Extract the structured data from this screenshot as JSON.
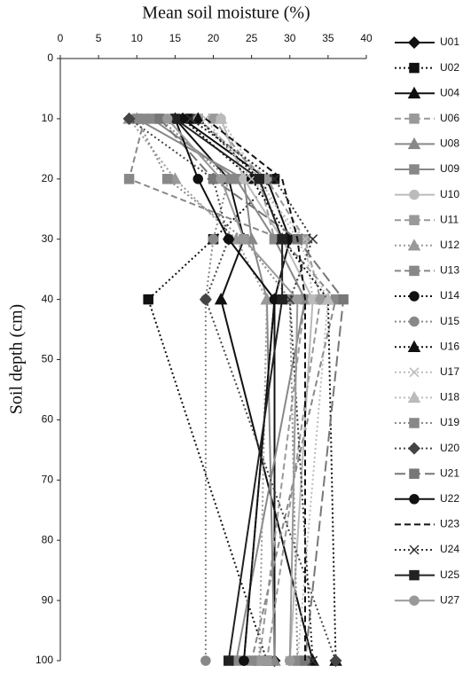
{
  "chart_data": {
    "type": "line",
    "xlabel": "Mean soil moisture (%)",
    "ylabel": "Soil depth (cm)",
    "xlim": [
      0,
      40
    ],
    "xticks": [
      0,
      5,
      10,
      15,
      20,
      25,
      30,
      35,
      40
    ],
    "ylim": [
      0,
      100
    ],
    "yticks": [
      0,
      10,
      20,
      30,
      40,
      50,
      60,
      70,
      80,
      90,
      100
    ],
    "y": [
      10,
      20,
      30,
      40,
      100
    ],
    "series": [
      {
        "name": "U01",
        "color": "#111111",
        "dash": "solid",
        "marker": "diamond",
        "values": [
          16,
          27,
          30,
          28,
          28
        ]
      },
      {
        "name": "U02",
        "color": "#111111",
        "dash": "dotted",
        "marker": "square",
        "values": [
          17,
          28,
          20,
          11.5,
          27
        ]
      },
      {
        "name": "U04",
        "color": "#111111",
        "dash": "solid",
        "marker": "triangle",
        "values": [
          15,
          22,
          24,
          21,
          33
        ]
      },
      {
        "name": "U06",
        "color": "#999999",
        "dash": "dashed",
        "marker": "plus-square",
        "values": [
          20,
          26,
          28,
          32,
          26
        ]
      },
      {
        "name": "U08",
        "color": "#888888",
        "dash": "solid",
        "marker": "triangle",
        "values": [
          10,
          24,
          25,
          27,
          28
        ]
      },
      {
        "name": "U09",
        "color": "#888888",
        "dash": "solid",
        "marker": "square",
        "values": [
          12,
          23,
          28,
          32,
          23
        ]
      },
      {
        "name": "U10",
        "color": "#bbbbbb",
        "dash": "solid",
        "marker": "circle",
        "values": [
          21,
          24,
          29,
          33,
          30
        ]
      },
      {
        "name": "U11",
        "color": "#999999",
        "dash": "dashed",
        "marker": "x-square",
        "values": [
          18,
          27,
          32,
          34,
          27
        ]
      },
      {
        "name": "U12",
        "color": "#999999",
        "dash": "dotted",
        "marker": "triangle",
        "values": [
          9,
          15,
          23,
          27,
          26
        ]
      },
      {
        "name": "U13",
        "color": "#888888",
        "dash": "dashed",
        "marker": "square",
        "values": [
          11,
          9,
          29,
          36,
          25
        ]
      },
      {
        "name": "U14",
        "color": "#111111",
        "dash": "dotted",
        "marker": "circle",
        "values": [
          16,
          25,
          30,
          28,
          24
        ]
      },
      {
        "name": "U15",
        "color": "#888888",
        "dash": "dotted",
        "marker": "circle",
        "values": [
          13,
          22,
          20,
          19,
          19
        ]
      },
      {
        "name": "U16",
        "color": "#111111",
        "dash": "dotted",
        "marker": "triangle",
        "values": [
          18,
          26,
          29,
          35,
          36
        ]
      },
      {
        "name": "U17",
        "color": "#bbbbbb",
        "dash": "dotted",
        "marker": "x",
        "values": [
          19,
          25,
          32,
          33,
          30
        ]
      },
      {
        "name": "U18",
        "color": "#bbbbbb",
        "dash": "dotted",
        "marker": "triangle",
        "values": [
          21,
          26,
          31,
          35,
          31
        ]
      },
      {
        "name": "U19",
        "color": "#888888",
        "dash": "dotted",
        "marker": "square",
        "values": [
          10,
          14,
          24,
          30,
          31
        ]
      },
      {
        "name": "U20",
        "color": "#444444",
        "dash": "dotted",
        "marker": "diamond",
        "values": [
          9,
          20,
          22,
          19,
          36
        ]
      },
      {
        "name": "U21",
        "color": "#777777",
        "dash": "longdash",
        "marker": "square",
        "values": [
          13,
          20,
          31,
          37,
          32
        ]
      },
      {
        "name": "U22",
        "color": "#111111",
        "dash": "solid",
        "marker": "circle",
        "values": [
          15,
          18,
          22,
          28,
          24
        ]
      },
      {
        "name": "U23",
        "color": "#111111",
        "dash": "dashed",
        "marker": "none",
        "values": [
          19,
          29,
          31,
          32,
          32
        ]
      },
      {
        "name": "U24",
        "color": "#333333",
        "dash": "dotted",
        "marker": "x",
        "values": [
          17,
          28,
          33,
          30,
          33
        ]
      },
      {
        "name": "U25",
        "color": "#222222",
        "dash": "solid",
        "marker": "square",
        "values": [
          15,
          26,
          29,
          29,
          22
        ]
      },
      {
        "name": "U27",
        "color": "#999999",
        "dash": "solid",
        "marker": "circle",
        "values": [
          14,
          21,
          24,
          31,
          30
        ]
      }
    ]
  }
}
